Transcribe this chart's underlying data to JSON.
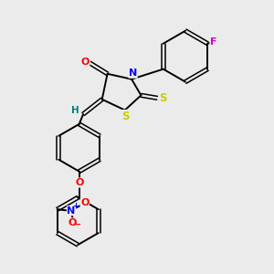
{
  "background_color": "#ebebeb",
  "bond_color": "#000000",
  "atom_colors": {
    "O": "#ff0000",
    "N": "#0000ff",
    "S": "#cccc00",
    "F": "#cc00cc",
    "H": "#008080",
    "C": "#000000"
  },
  "figsize": [
    3.0,
    3.0
  ],
  "dpi": 100
}
